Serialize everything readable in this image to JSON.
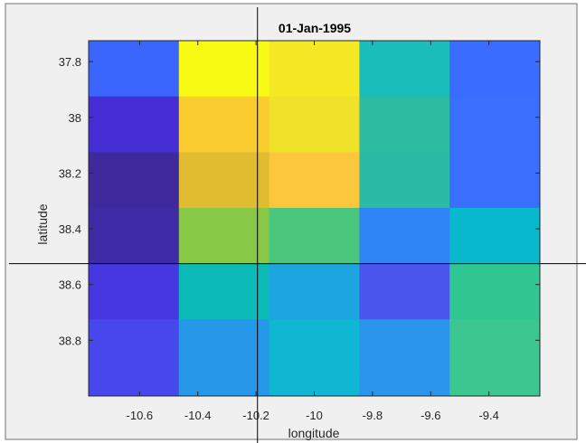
{
  "chart_data": {
    "type": "heatmap",
    "title": "01-Jan-1995",
    "xlabel": "longitude",
    "ylabel": "latitude",
    "x_ticks": [
      -10.6,
      -10.4,
      -10.2,
      -10.0,
      -9.8,
      -9.6,
      -9.4
    ],
    "x_tick_labels": [
      "-10.6",
      "-10.4",
      "-10.2",
      "-10",
      "-9.8",
      "-9.6",
      "-9.4"
    ],
    "y_ticks": [
      37.8,
      38.0,
      38.2,
      38.4,
      38.6,
      38.8
    ],
    "y_tick_labels": [
      "37.8",
      "38",
      "38.2",
      "38.4",
      "38.6",
      "38.8"
    ],
    "xlim": [
      -10.775,
      -9.225
    ],
    "ylim": [
      37.725,
      39.0
    ],
    "y_reversed": true,
    "x_cell_edges": [
      -10.775,
      -10.465,
      -10.155,
      -9.845,
      -9.535,
      -9.225
    ],
    "y_cell_edges": [
      37.725,
      37.925,
      38.125,
      38.325,
      38.525,
      38.725,
      38.925,
      39.0
    ],
    "cell_colors": [
      [
        "#3a66fd",
        "#f9fa14",
        "#f5e824",
        "#1abdb9",
        "#3a6dff"
      ],
      [
        "#452ed5",
        "#fbcc30",
        "#f0e228",
        "#2dbba1",
        "#3a6efd"
      ],
      [
        "#3e2a9d",
        "#e2bc30",
        "#fcc73c",
        "#2bbaa4",
        "#3a6efd"
      ],
      [
        "#3f2ba5",
        "#88c847",
        "#4bc67d",
        "#2f85f6",
        "#08b9cd"
      ],
      [
        "#4737e1",
        "#0cbab8",
        "#1ca5df",
        "#4a55ee",
        "#30c692"
      ],
      [
        "#4648ec",
        "#2797ea",
        "#10b7d3",
        "#2a95ea",
        "#3cc790"
      ],
      [
        "#4648ec",
        "#2797ea",
        "#10b7d3",
        "#2a95ea",
        "#3cc790"
      ]
    ],
    "crosshair": {
      "x": -10.195,
      "y": 38.525
    },
    "grid": false
  }
}
